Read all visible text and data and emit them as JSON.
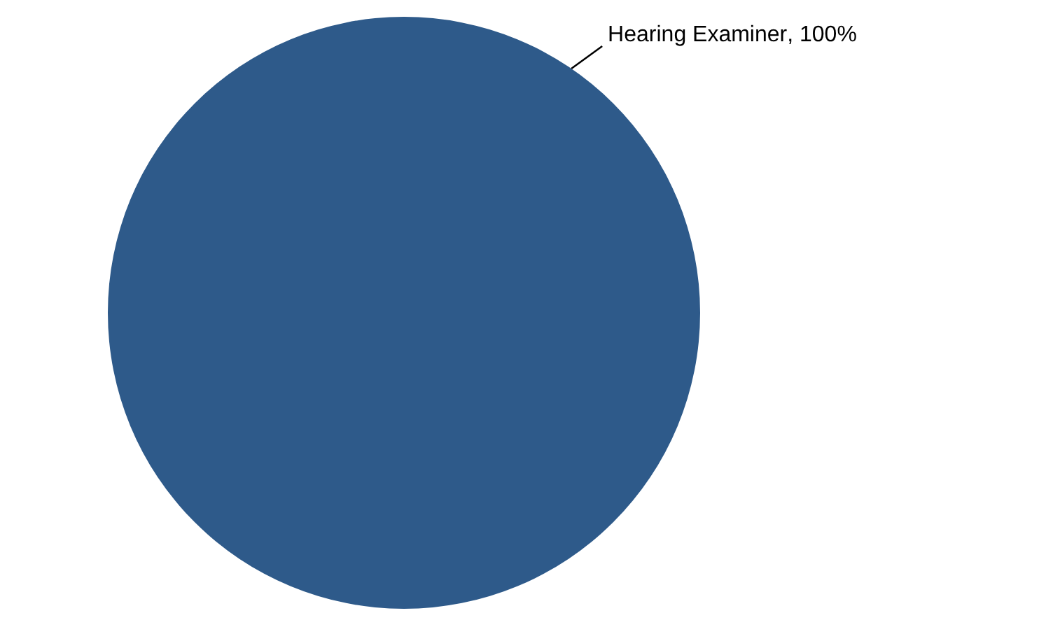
{
  "chart_data": {
    "type": "pie",
    "categories": [
      "Hearing Examiner"
    ],
    "values": [
      100
    ],
    "colors": [
      "#2e5a8a"
    ],
    "value_labels": [
      ", 100%"
    ],
    "legend": false
  }
}
